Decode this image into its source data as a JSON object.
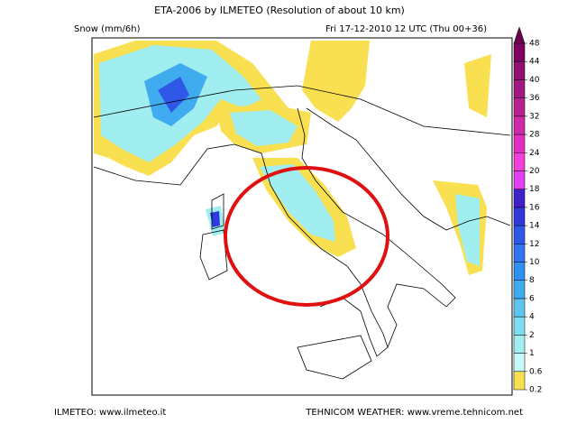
{
  "header": {
    "title": "ETA-2006 by ILMETEO (Resolution of about 10 km)",
    "field": "Snow (mm/6h)",
    "valid_time": "Fri 17-12-2010 12 UTC (Thu 00+36)"
  },
  "legend": {
    "levels": [
      0.2,
      0.6,
      1,
      2,
      4,
      6,
      8,
      10,
      12,
      14,
      16,
      18,
      20,
      24,
      28,
      32,
      36,
      40,
      44,
      48
    ],
    "colors": [
      "#f8e050",
      "#c8f8f8",
      "#a0eef0",
      "#80dcf0",
      "#60c4f0",
      "#40acf0",
      "#3090f0",
      "#3074f0",
      "#3058e8",
      "#3038e0",
      "#4020c8",
      "#e040f0",
      "#f040d8",
      "#e030c0",
      "#d028a8",
      "#b82090",
      "#a01880",
      "#901070",
      "#800060"
    ],
    "top_color": "#700050"
  },
  "footer": {
    "left": "ILMETEO: www.ilmeteo.it",
    "right": "TEHNICOM WEATHER: www.vreme.tehnicom.net"
  }
}
